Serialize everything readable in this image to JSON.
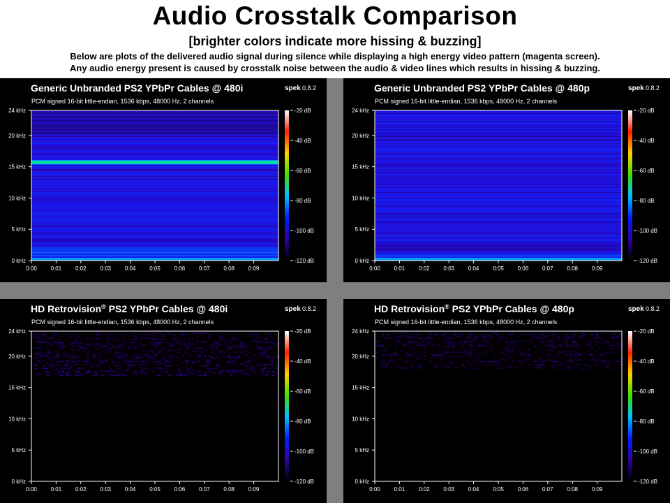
{
  "header": {
    "title": "Audio Crosstalk Comparison",
    "subtitle": "[brighter colors indicate more hissing & buzzing]",
    "line1": "Below are plots of the delivered audio signal during silence while displaying a high energy video pattern (magenta screen).",
    "line2": "Any audio energy present is caused by crosstalk noise between the audio & video lines which results in hissing & buzzing."
  },
  "common": {
    "spek_name": "spek",
    "spek_version": "0.8.2",
    "info": "PCM signed 16-bit little-endian, 1536 kbps, 48000 Hz, 2 channels",
    "freq_ticks": [
      "24 kHz",
      "20 kHz",
      "15 kHz",
      "10 kHz",
      "5 kHz",
      "0 kHz"
    ],
    "time_ticks": [
      "0:00",
      "0:01",
      "0:02",
      "0:03",
      "0:04",
      "0:05",
      "0:06",
      "0:07",
      "0:08",
      "0:09"
    ],
    "db_ticks": [
      "-20 dB",
      "-40 dB",
      "-60 dB",
      "-80 dB",
      "-100 dB",
      "-120 dB"
    ]
  },
  "colors": {
    "page_background": "#ffffff",
    "panel_background": "#000000",
    "separator_gray": "#7f7f7f",
    "colorbar": [
      "#ffffff",
      "#ff2000",
      "#ffd000",
      "#40e000",
      "#00c0ff",
      "#0020ff",
      "#3000a0",
      "#000000"
    ]
  },
  "chart_data": [
    {
      "type": "heatmap",
      "title": "Generic Unbranded PS2 YPbPr Cables @ 480i",
      "xlabel": "",
      "ylabel": "",
      "xlim": [
        0,
        10
      ],
      "ylim_khz": [
        0,
        24
      ],
      "zlim_db": [
        -120,
        -20
      ],
      "background_level_db": -100,
      "dominant_band": {
        "freq_khz": 15.7,
        "level_db": -80
      },
      "note_levels": [
        {
          "freq_khz_range": [
            0,
            2
          ],
          "level_db": -90
        },
        {
          "freq_khz_range": [
            20,
            24
          ],
          "level_db": -108
        }
      ]
    },
    {
      "type": "heatmap",
      "title": "Generic Unbranded PS2 YPbPr Cables @ 480p",
      "xlabel": "",
      "ylabel": "",
      "xlim": [
        0,
        10
      ],
      "ylim_khz": [
        0,
        24
      ],
      "zlim_db": [
        -120,
        -20
      ],
      "background_level_db": -100,
      "dominant_band": null,
      "note_levels": [
        {
          "freq_khz_range": [
            0,
            1
          ],
          "level_db": -90
        }
      ]
    },
    {
      "type": "heatmap",
      "title_main": "HD Retrovision",
      "title_mark": "®",
      "title_rest": " PS2 YPbPr Cables @ 480i",
      "xlabel": "",
      "ylabel": "",
      "xlim": [
        0,
        10
      ],
      "ylim_khz": [
        0,
        24
      ],
      "zlim_db": [
        -120,
        -20
      ],
      "background_level_db": -120,
      "dominant_band": null,
      "note_levels": [
        {
          "freq_khz_range": [
            17,
            24
          ],
          "level_db": -112
        }
      ]
    },
    {
      "type": "heatmap",
      "title_main": "HD Retrovision",
      "title_mark": "®",
      "title_rest": " PS2 YPbPr Cables @ 480p",
      "xlabel": "",
      "ylabel": "",
      "xlim": [
        0,
        10
      ],
      "ylim_khz": [
        0,
        24
      ],
      "zlim_db": [
        -120,
        -20
      ],
      "background_level_db": -120,
      "dominant_band": null,
      "note_levels": [
        {
          "freq_khz_range": [
            18,
            24
          ],
          "level_db": -113
        }
      ]
    }
  ]
}
